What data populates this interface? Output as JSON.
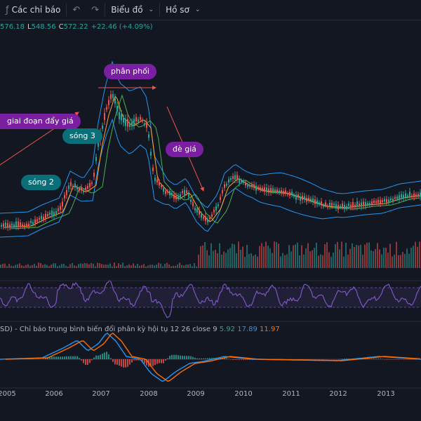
{
  "toolbar": {
    "indicators_icon": "fx-icon",
    "indicators_label": "Các chỉ báo",
    "undo_icon": "undo-icon",
    "redo_icon": "redo-icon",
    "chart_menu": "Biểu đồ",
    "profile_menu": "Hồ sơ"
  },
  "ohlc": {
    "high": "576.18",
    "low_label": "L",
    "low": "548.56",
    "close_label": "C",
    "close": "572.22",
    "change": "+22.46 (+4.09%)"
  },
  "annotations": {
    "push_phase": "giai đoạn đẩy giá",
    "wave3": "sóng 3",
    "wave2": "sóng 2",
    "distribution": "phân phối",
    "price_pressure": "đè giá"
  },
  "macd": {
    "label": "SD) - Chỉ báo trung bình biến đổi phân kỳ hội tụ 12 26 close 9",
    "histogram": "5.92",
    "macd": "17.89",
    "signal": "11.97"
  },
  "x_axis": [
    "2005",
    "2006",
    "2007",
    "2008",
    "2009",
    "2010",
    "2011",
    "2012",
    "2013"
  ],
  "colors": {
    "background": "#131722",
    "bollinger": "#2196f3",
    "up": "#26a69a",
    "down": "#ef5350",
    "rsi": "#7e57c2",
    "macd_line": "#2196f3",
    "signal_line": "#ff6d00",
    "callout_teal": "#0b6f7a",
    "callout_purple": "#7b1fa2"
  }
}
